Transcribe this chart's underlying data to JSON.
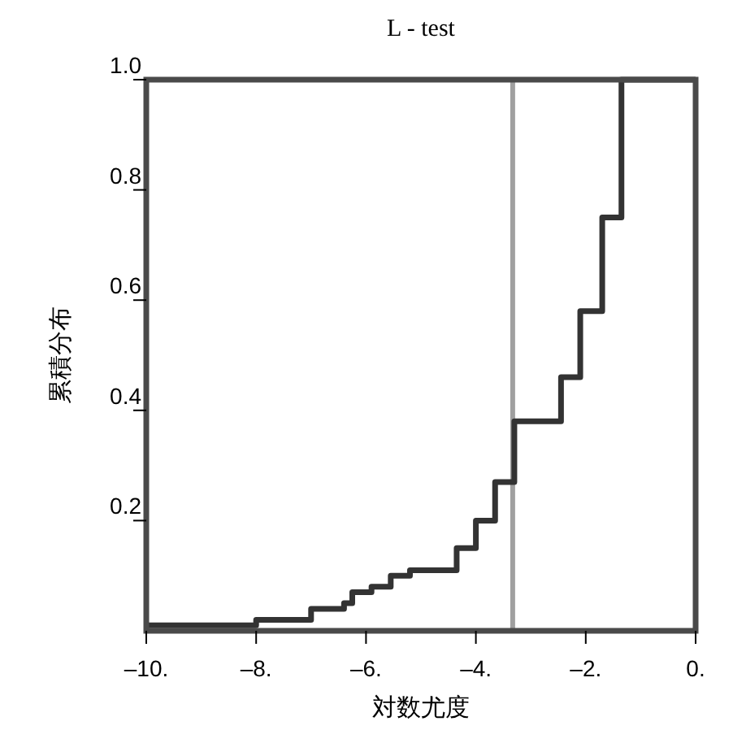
{
  "chart_data": {
    "type": "step",
    "title": "L - test",
    "xlabel": "対数尤度",
    "ylabel": "累積分布",
    "x": [
      -10,
      -9,
      -8,
      -7,
      -6.4,
      -6.25,
      -5.9,
      -5.55,
      -5.2,
      -4.35,
      -4.0,
      -3.65,
      -3.3,
      -2.45,
      -2.1,
      -1.7,
      -1.35,
      0
    ],
    "series": [
      {
        "color": "#333333",
        "values": [
          0.01,
          0.01,
          0.02,
          0.04,
          0.05,
          0.07,
          0.08,
          0.1,
          0.11,
          0.15,
          0.2,
          0.27,
          0.38,
          0.46,
          0.58,
          0.75,
          1.0,
          1.0
        ]
      }
    ],
    "xlim": [
      -10,
      0
    ],
    "xticks": [
      {
        "value": -10,
        "label": "–10."
      },
      {
        "value": -8,
        "label": "–8."
      },
      {
        "value": -6,
        "label": "–6."
      },
      {
        "value": -4,
        "label": "–4."
      },
      {
        "value": -2,
        "label": "–2."
      },
      {
        "value": 0,
        "label": "0."
      }
    ],
    "ylim": [
      0,
      1
    ],
    "yticks": [
      0.2,
      0.4,
      0.6,
      0.8,
      {
        "value": 1,
        "label": "1.0"
      }
    ],
    "ref_lines": [
      {
        "axis": "x",
        "value": -3.33,
        "color": "#a0a0a0"
      }
    ],
    "grid": false
  }
}
